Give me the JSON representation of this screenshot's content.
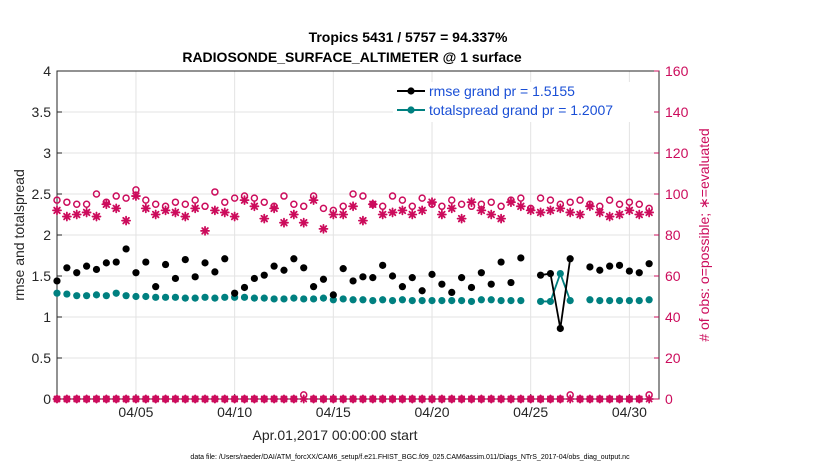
{
  "chart_data": {
    "type": "scatter",
    "title": "Tropics 5431 / 5757 = 94.337%",
    "subtitle": "RADIOSONDE_SURFACE_ALTIMETER @ 1 surface",
    "xlabel": "Apr.01,2017 00:00:00 start",
    "ylabel": "rmse and totalspread",
    "ylabel_right": "# of obs: o=possible; ∗=evaluated",
    "xlim": [
      0.0,
      30.5
    ],
    "ylim": [
      0,
      4
    ],
    "ylim_right": [
      0,
      160
    ],
    "grid": true,
    "legend_position": "top-right",
    "x_ticks": [
      {
        "value": 4,
        "label": "04/05"
      },
      {
        "value": 9,
        "label": "04/10"
      },
      {
        "value": 14,
        "label": "04/15"
      },
      {
        "value": 19,
        "label": "04/20"
      },
      {
        "value": 24,
        "label": "04/25"
      },
      {
        "value": 29,
        "label": "04/30"
      }
    ],
    "y_ticks": [
      "0",
      "0.5",
      "1",
      "1.5",
      "2",
      "2.5",
      "3",
      "3.5",
      "4"
    ],
    "y_ticks_right": [
      "0",
      "20",
      "40",
      "60",
      "80",
      "100",
      "120",
      "140",
      "160"
    ],
    "x": [
      0.0,
      0.5,
      1.0,
      1.5,
      2.0,
      2.5,
      3.0,
      3.5,
      4.0,
      4.5,
      5.0,
      5.5,
      6.0,
      6.5,
      7.0,
      7.5,
      8.0,
      8.5,
      9.0,
      9.5,
      10.0,
      10.5,
      11.0,
      11.5,
      12.0,
      12.5,
      13.0,
      13.5,
      14.0,
      14.5,
      15.0,
      15.5,
      16.0,
      16.5,
      17.0,
      17.5,
      18.0,
      18.5,
      19.0,
      19.5,
      20.0,
      20.5,
      21.0,
      21.5,
      22.0,
      22.5,
      23.0,
      23.5,
      24.0,
      24.5,
      25.0,
      25.5,
      26.0,
      26.5,
      27.0,
      27.5,
      28.0,
      28.5,
      29.0,
      29.5,
      30.0
    ],
    "series": [
      {
        "name": "rmse grand pr = 1.5155",
        "legend_label": "rmse grand pr = 1.5155",
        "color": "#000000",
        "marker": "filled-circle",
        "values": [
          1.44,
          1.6,
          1.54,
          1.62,
          1.58,
          1.66,
          1.67,
          1.83,
          1.54,
          1.67,
          1.37,
          1.64,
          1.47,
          1.7,
          1.49,
          1.66,
          1.55,
          1.71,
          1.29,
          1.36,
          1.47,
          1.51,
          1.62,
          1.57,
          1.71,
          1.6,
          1.37,
          1.46,
          1.27,
          1.59,
          1.44,
          1.49,
          1.48,
          1.63,
          1.5,
          1.37,
          1.48,
          1.32,
          1.52,
          1.4,
          1.3,
          1.48,
          1.36,
          1.54,
          1.4,
          1.67,
          1.42,
          1.72,
          null,
          1.51,
          1.53,
          0.86,
          1.71,
          null,
          1.61,
          1.57,
          1.62,
          1.63,
          1.56,
          1.54,
          1.65
        ]
      },
      {
        "name": "totalspread grand pr = 1.2007",
        "legend_label": "totalspread grand pr = 1.2007",
        "color": "#008080",
        "marker": "filled-circle",
        "values": [
          1.29,
          1.28,
          1.26,
          1.26,
          1.27,
          1.26,
          1.29,
          1.26,
          1.25,
          1.25,
          1.24,
          1.24,
          1.24,
          1.23,
          1.23,
          1.24,
          1.23,
          1.24,
          1.24,
          1.24,
          1.23,
          1.23,
          1.22,
          1.22,
          1.23,
          1.22,
          1.22,
          1.23,
          1.21,
          1.22,
          1.21,
          1.21,
          1.2,
          1.21,
          1.2,
          1.21,
          1.2,
          1.2,
          1.2,
          1.2,
          1.2,
          1.2,
          1.19,
          1.21,
          1.21,
          1.2,
          1.2,
          1.2,
          null,
          1.19,
          1.19,
          1.53,
          1.2,
          null,
          1.21,
          1.2,
          1.2,
          1.2,
          1.2,
          1.2,
          1.21
        ]
      },
      {
        "name": "obs possible",
        "color": "#cc0c5c",
        "marker": "open-circle",
        "axis": "right",
        "values": [
          97,
          96,
          95,
          95,
          100,
          96,
          99,
          98,
          102,
          97,
          95,
          94,
          96,
          95,
          97,
          94,
          101,
          96,
          98,
          99,
          98,
          96,
          94,
          99,
          95,
          94,
          99,
          93,
          92,
          94,
          100,
          99,
          95,
          94,
          99,
          97,
          94,
          98,
          95,
          94,
          97,
          95,
          94,
          95,
          96,
          94,
          97,
          98,
          93,
          98,
          97,
          95,
          96,
          97,
          95,
          94,
          97,
          95,
          96,
          95,
          93
        ],
        "values_evaluated": [
          92,
          89,
          90,
          91,
          89,
          95,
          93,
          87,
          99,
          93,
          90,
          92,
          91,
          89,
          93,
          82,
          92,
          91,
          89,
          97,
          94,
          88,
          93,
          86,
          90,
          86,
          97,
          83,
          90,
          90,
          94,
          87,
          95,
          90,
          91,
          92,
          90,
          92,
          96,
          90,
          93,
          88,
          96,
          92,
          90,
          88,
          96,
          94,
          92,
          91,
          92,
          93,
          91,
          90,
          94,
          91,
          89,
          90,
          92,
          90,
          91
        ],
        "zero_possible": [
          0,
          0,
          0,
          0,
          0,
          0,
          0,
          0,
          0,
          0,
          0,
          0,
          0,
          0,
          0,
          0,
          0,
          0,
          0,
          0,
          0,
          0,
          0,
          0,
          0,
          2,
          0,
          0,
          0,
          0,
          0,
          0,
          0,
          0,
          0,
          0,
          0,
          0,
          0,
          0,
          0,
          0,
          0,
          0,
          0,
          0,
          0,
          0,
          0,
          0,
          0,
          0,
          2,
          0,
          0,
          0,
          0,
          0,
          0,
          0,
          2
        ],
        "zero_evaluated": [
          0,
          0,
          0,
          0,
          0,
          0,
          0,
          0,
          0,
          0,
          0,
          0,
          0,
          0,
          0,
          0,
          0,
          0,
          0,
          0,
          0,
          0,
          0,
          0,
          0,
          0,
          0,
          0,
          0,
          0,
          0,
          0,
          0,
          0,
          0,
          0,
          0,
          0,
          0,
          0,
          0,
          0,
          0,
          0,
          0,
          0,
          0,
          0,
          0,
          0,
          0,
          0,
          0,
          0,
          0,
          0,
          0,
          0,
          0,
          0,
          0
        ]
      }
    ]
  },
  "footnote": "data file: /Users/raeder/DAI/ATM_forcXX/CAM6_setup/f.e21.FHIST_BGC.f09_025.CAM6assim.011/Diags_NTrS_2017-04/obs_diag_output.nc"
}
